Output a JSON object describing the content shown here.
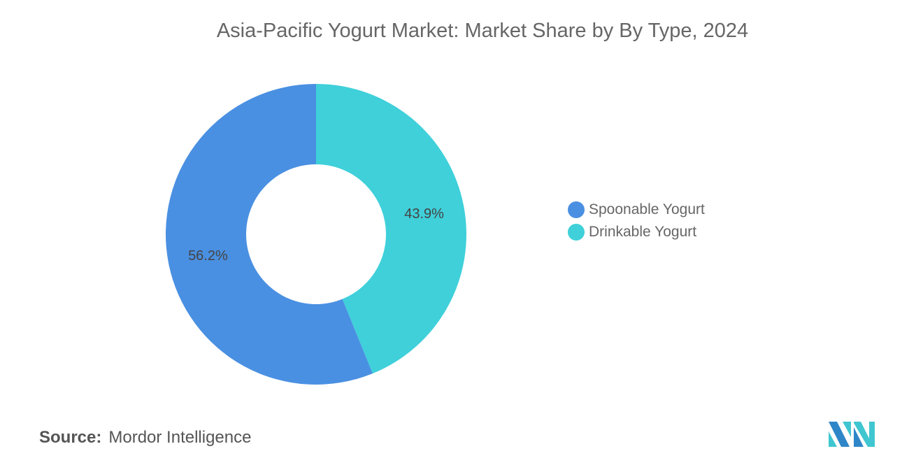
{
  "chart_data": {
    "type": "pie",
    "donut": true,
    "title": "Asia-Pacific Yogurt Market: Market Share by By Type, 2024",
    "categories": [
      "Spoonable Yogurt",
      "Drinkable Yogurt"
    ],
    "values": [
      56.2,
      43.9
    ],
    "labels": [
      "56.2%",
      "43.9%"
    ],
    "colors": [
      "#4A90E2",
      "#3FD0DA"
    ],
    "legend_position": "right"
  },
  "source": {
    "label": "Source:",
    "value": "Mordor Intelligence"
  },
  "logo": {
    "text": "Mordor Intelligence"
  }
}
